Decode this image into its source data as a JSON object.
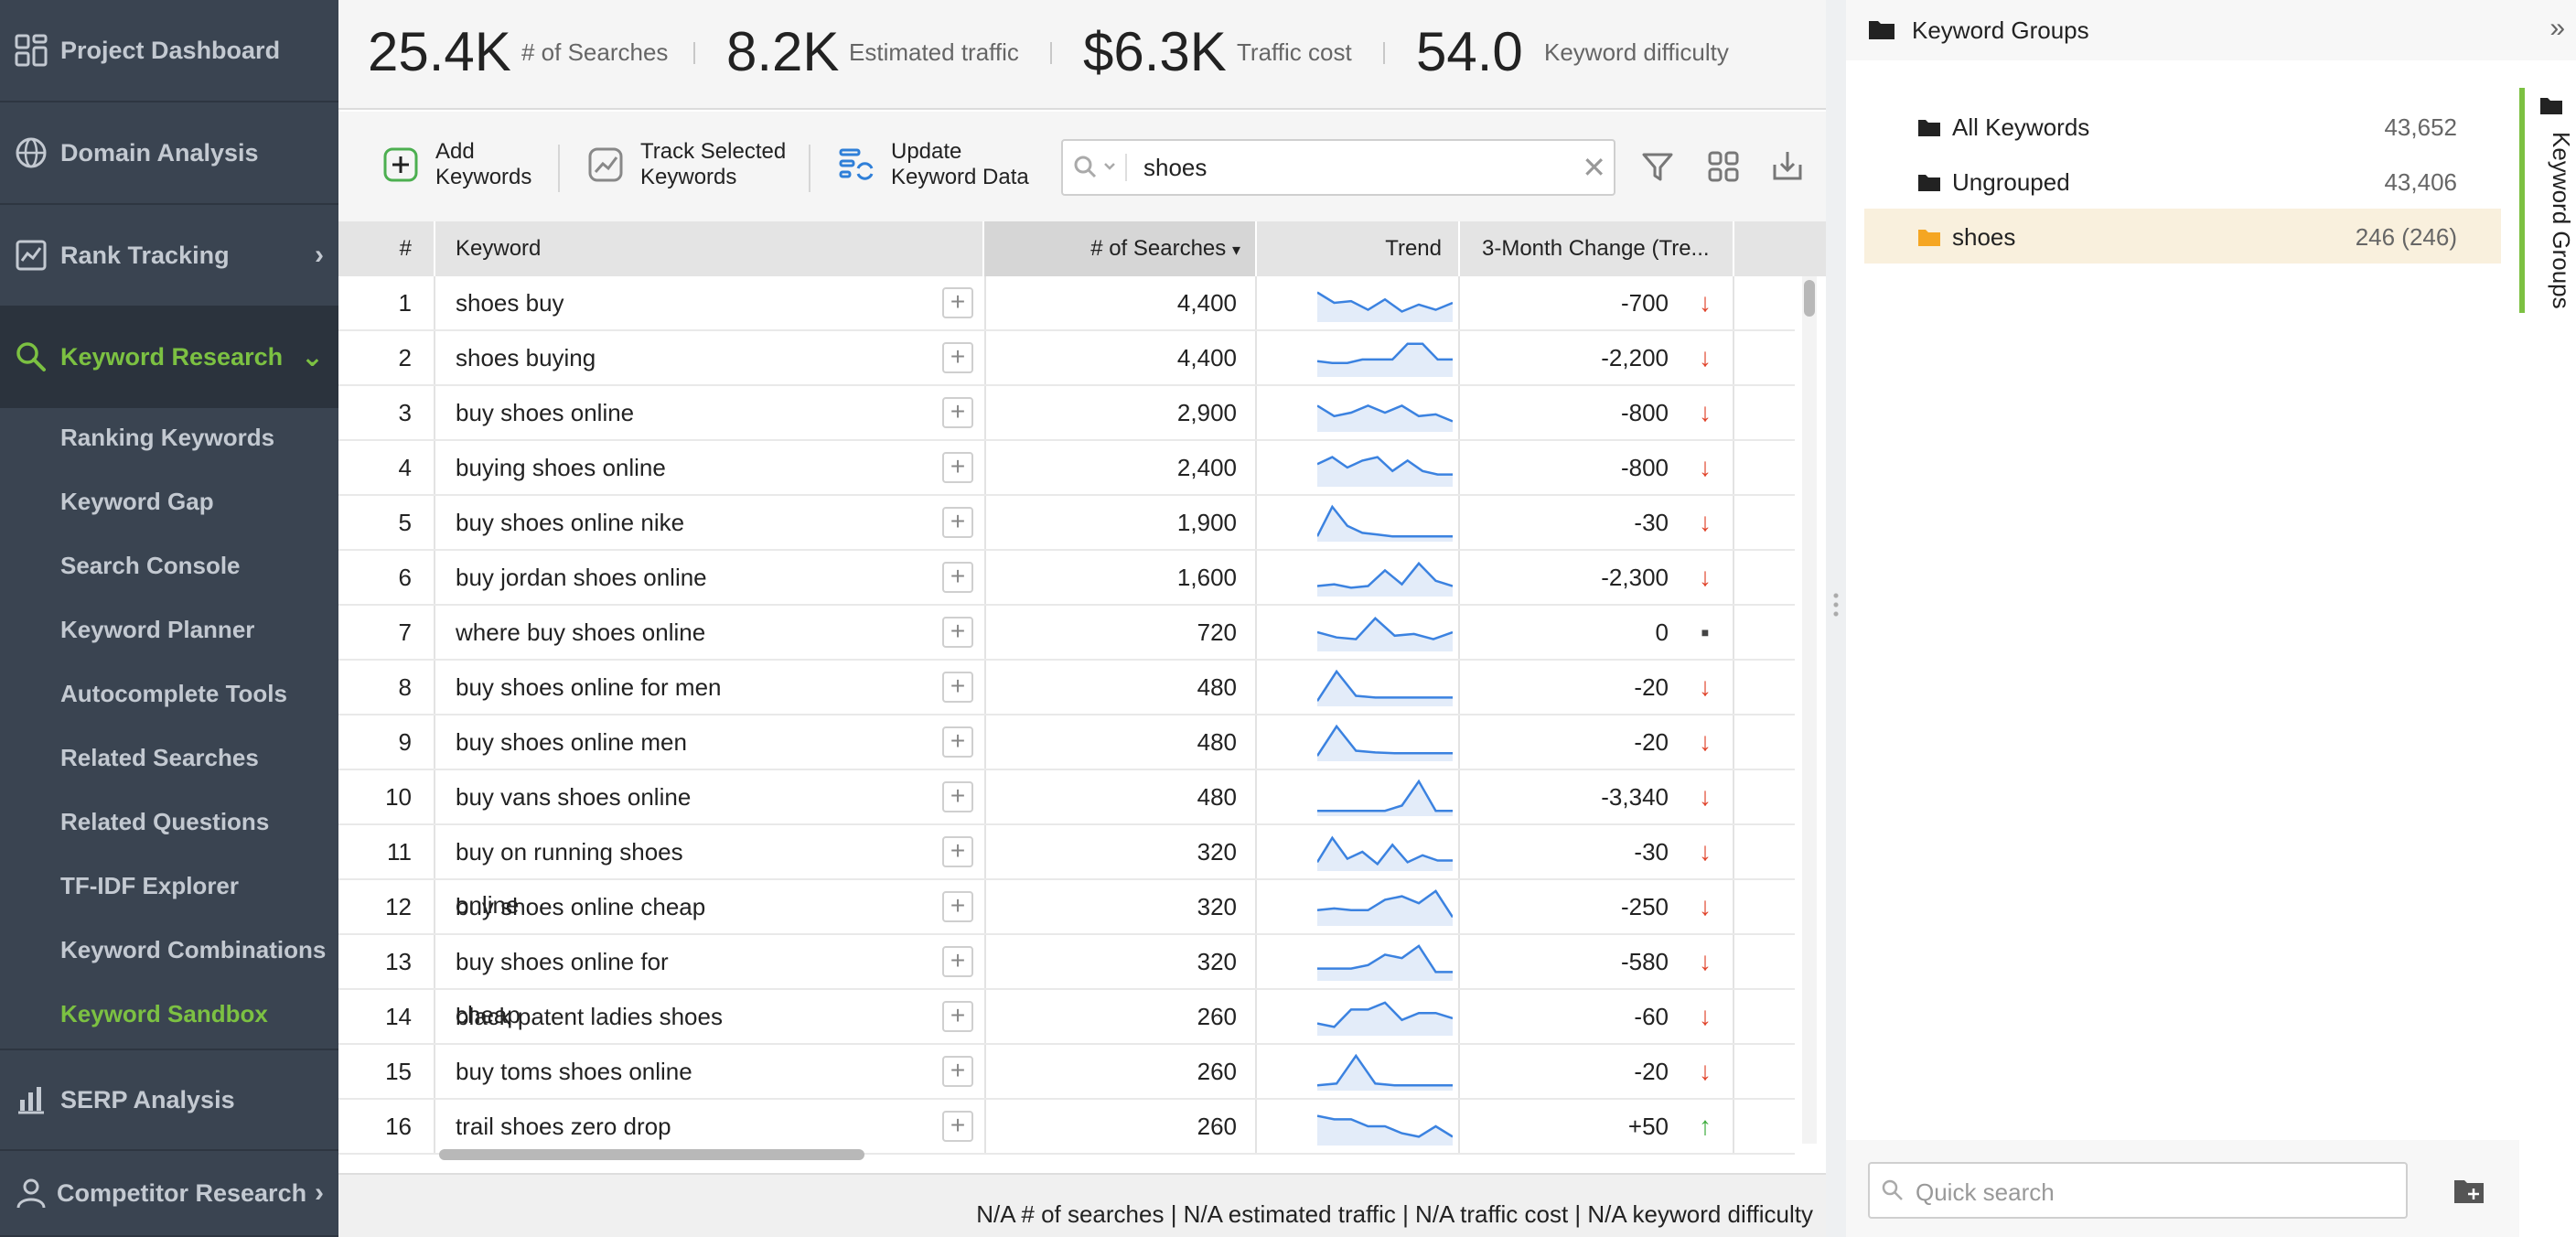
{
  "sidebar": {
    "items": [
      {
        "label": "Project Dashboard",
        "icon": "dashboard-icon"
      },
      {
        "label": "Domain Analysis",
        "icon": "globe-icon"
      },
      {
        "label": "Rank Tracking",
        "icon": "chart-icon"
      },
      {
        "label": "Keyword Research",
        "icon": "search-icon"
      },
      {
        "label": "SERP Analysis",
        "icon": "bar-chart-icon"
      },
      {
        "label": "Competitor Research",
        "icon": "person-icon"
      }
    ],
    "sub_items": [
      "Ranking Keywords",
      "Keyword Gap",
      "Search Console",
      "Keyword Planner",
      "Autocomplete Tools",
      "Related Searches",
      "Related Questions",
      "TF-IDF Explorer",
      "Keyword Combinations",
      "Keyword Sandbox"
    ],
    "active_item": "Keyword Research",
    "active_sub_item": "Keyword Sandbox",
    "accent_color": "#7cc142"
  },
  "stats": [
    {
      "value": "25.4K",
      "label": "# of Searches"
    },
    {
      "value": "8.2K",
      "label": "Estimated traffic"
    },
    {
      "value": "$6.3K",
      "label": "Traffic cost"
    },
    {
      "value": "54.0",
      "label": "Keyword difficulty"
    }
  ],
  "toolbar": {
    "add_keywords": "Add Keywords",
    "track_selected": "Track Selected Keywords",
    "update_data": "Update Keyword Data",
    "search_value": "shoes"
  },
  "table": {
    "columns": [
      "#",
      "Keyword",
      "# of Searches",
      "Trend",
      "3-Month Change (Tre..."
    ],
    "sort_indicator": "▾",
    "rows": [
      {
        "n": "1",
        "keyword": "shoes buy",
        "searches": "4,400",
        "change": "-700",
        "dir": "down",
        "trend": [
          0.2,
          0.5,
          0.45,
          0.7,
          0.4,
          0.75,
          0.55,
          0.7,
          0.5
        ]
      },
      {
        "n": "2",
        "keyword": "shoes buying",
        "searches": "4,400",
        "change": "-2,200",
        "dir": "down",
        "trend": [
          0.6,
          0.65,
          0.65,
          0.55,
          0.55,
          0.55,
          0.1,
          0.1,
          0.55,
          0.55
        ]
      },
      {
        "n": "3",
        "keyword": "buy shoes online",
        "searches": "2,900",
        "change": "-800",
        "dir": "down",
        "trend": [
          0.3,
          0.6,
          0.5,
          0.3,
          0.5,
          0.3,
          0.6,
          0.55,
          0.75
        ]
      },
      {
        "n": "4",
        "keyword": "buying shoes online",
        "searches": "2,400",
        "change": "-800",
        "dir": "down",
        "trend": [
          0.4,
          0.2,
          0.5,
          0.3,
          0.2,
          0.6,
          0.3,
          0.6,
          0.7,
          0.7
        ]
      },
      {
        "n": "5",
        "keyword": "buy shoes online nike",
        "searches": "1,900",
        "change": "-30",
        "dir": "down",
        "trend": [
          0.9,
          0.05,
          0.6,
          0.8,
          0.85,
          0.9,
          0.9,
          0.9,
          0.9,
          0.9
        ]
      },
      {
        "n": "6",
        "keyword": "buy jordan shoes online",
        "searches": "1,600",
        "change": "-2,300",
        "dir": "down",
        "trend": [
          0.75,
          0.7,
          0.8,
          0.75,
          0.3,
          0.7,
          0.1,
          0.6,
          0.75
        ]
      },
      {
        "n": "7",
        "keyword": "where buy shoes online",
        "searches": "720",
        "change": "0",
        "dir": "flat",
        "trend": [
          0.5,
          0.65,
          0.7,
          0.1,
          0.6,
          0.55,
          0.7,
          0.5
        ]
      },
      {
        "n": "8",
        "keyword": "buy shoes online for men",
        "searches": "480",
        "change": "-20",
        "dir": "down",
        "trend": [
          0.9,
          0.05,
          0.75,
          0.8,
          0.8,
          0.8,
          0.8,
          0.8
        ]
      },
      {
        "n": "9",
        "keyword": "buy shoes online men",
        "searches": "480",
        "change": "-20",
        "dir": "down",
        "trend": [
          0.9,
          0.05,
          0.75,
          0.8,
          0.82,
          0.82,
          0.82,
          0.82
        ]
      },
      {
        "n": "10",
        "keyword": "buy vans shoes online",
        "searches": "480",
        "change": "-3,340",
        "dir": "down",
        "trend": [
          0.9,
          0.9,
          0.9,
          0.9,
          0.9,
          0.75,
          0.05,
          0.9,
          0.9
        ]
      },
      {
        "n": "11",
        "keyword": "buy on running shoes online",
        "searches": "320",
        "change": "-30",
        "dir": "down",
        "trend": [
          0.8,
          0.1,
          0.7,
          0.5,
          0.85,
          0.3,
          0.8,
          0.6,
          0.75,
          0.75
        ]
      },
      {
        "n": "12",
        "keyword": "buy shoes online cheap",
        "searches": "320",
        "change": "-250",
        "dir": "down",
        "trend": [
          0.6,
          0.55,
          0.6,
          0.6,
          0.3,
          0.2,
          0.4,
          0.05,
          0.8
        ]
      },
      {
        "n": "13",
        "keyword": "buy shoes online for cheap",
        "searches": "320",
        "change": "-580",
        "dir": "down",
        "trend": [
          0.7,
          0.7,
          0.7,
          0.6,
          0.3,
          0.4,
          0.05,
          0.8,
          0.8
        ]
      },
      {
        "n": "14",
        "keyword": "black patent ladies shoes",
        "searches": "260",
        "change": "-60",
        "dir": "down",
        "trend": [
          0.7,
          0.8,
          0.3,
          0.3,
          0.1,
          0.6,
          0.4,
          0.4,
          0.55
        ]
      },
      {
        "n": "15",
        "keyword": "buy toms shoes online",
        "searches": "260",
        "change": "-20",
        "dir": "down",
        "trend": [
          0.9,
          0.85,
          0.05,
          0.85,
          0.9,
          0.9,
          0.9,
          0.9
        ]
      },
      {
        "n": "16",
        "keyword": "trail shoes zero drop",
        "searches": "260",
        "change": "+50",
        "dir": "up",
        "trend": [
          0.2,
          0.3,
          0.3,
          0.5,
          0.5,
          0.7,
          0.8,
          0.5,
          0.8
        ]
      }
    ]
  },
  "footer": {
    "text": "N/A # of searches | N/A estimated traffic | N/A traffic cost | N/A keyword difficulty"
  },
  "right_panel": {
    "title": "Keyword Groups",
    "vertical_tab": "Keyword Groups",
    "groups": [
      {
        "name": "All Keywords",
        "count": "43,652",
        "folder_color": "#222222"
      },
      {
        "name": "Ungrouped",
        "count": "43,406",
        "folder_color": "#222222"
      },
      {
        "name": "shoes",
        "count": "246 (246)",
        "folder_color": "#f5a623",
        "selected": true
      }
    ],
    "quick_search_placeholder": "Quick search"
  },
  "colors": {
    "trend_line": "#3b82e0",
    "trend_fill": "#e3ecf9",
    "down_arrow": "#e0442b",
    "up_arrow": "#3bab3b",
    "selected_group_bg": "#f9f0dd",
    "toolbar_icon_blue": "#2f7fd8",
    "toolbar_icon_green": "#4caf50"
  }
}
